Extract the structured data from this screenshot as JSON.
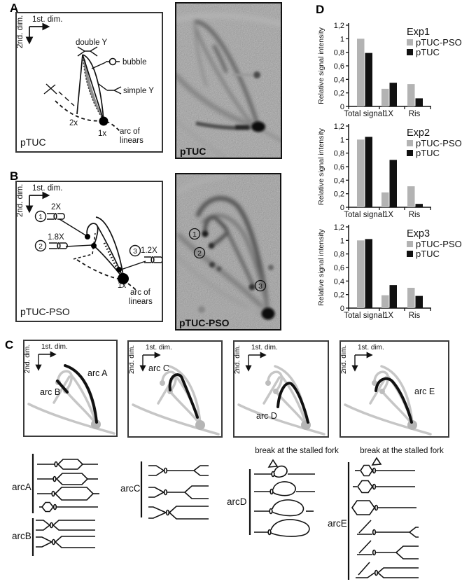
{
  "panelA": {
    "label": "A",
    "diagram": {
      "axis1": "1st. dim.",
      "axis2": "2nd. dim.",
      "double_y": "double Y",
      "bubble": "bubble",
      "simple_y": "simple Y",
      "x2": "2x",
      "x1": "1x",
      "arc_line1": "arc of",
      "arc_line2": "linears",
      "plasmid": "pTUC"
    },
    "gel": {
      "label": "pTUC"
    }
  },
  "panelB": {
    "label": "B",
    "diagram": {
      "axis1": "1st. dim.",
      "axis2": "2nd. dim.",
      "spot1_num": "1",
      "spot1_size": "2X",
      "spot2_num": "2",
      "spot2_size": "1.8X",
      "spot3_num": "3",
      "spot3_size": "1.2X",
      "x1": "1x",
      "arc_line1": "arc of",
      "arc_line2": "linears",
      "plasmid": "pTUC-PSO"
    },
    "gel": {
      "label": "pTUC-PSO",
      "spot1": "1",
      "spot2": "2",
      "spot3": "3"
    }
  },
  "panelC": {
    "label": "C",
    "boxes": [
      {
        "axis1": "1st. dim.",
        "axis2": "2nd. dim.",
        "arc_a": "arc A",
        "arc_b": "arc B"
      },
      {
        "axis1": "1st. dim.",
        "axis2": "2nd. dim.",
        "arc_c": "arc C"
      },
      {
        "axis1": "1st. dim.",
        "axis2": "2nd. dim.",
        "arc_d": "arc D"
      },
      {
        "axis1": "1st. dim.",
        "axis2": "2nd. dim.",
        "arc_e": "arc E"
      }
    ],
    "schematics": {
      "arcA": "arcA",
      "arcB": "arcB",
      "arcC": "arcC",
      "arcD": "arcD",
      "arcE": "arcE",
      "break_d": "break at the stalled fork",
      "break_e": "break at the stalled fork"
    }
  },
  "panelD": {
    "label": "D"
  },
  "chart_data": [
    {
      "type": "bar",
      "title": "Exp1",
      "ylabel": "Relative signal intensity",
      "categories": [
        "Total signal",
        "1X",
        "Ris"
      ],
      "series": [
        {
          "name": "pTUC-PSO",
          "color": "#b3b3b3",
          "values": [
            1.0,
            0.26,
            0.33
          ]
        },
        {
          "name": "pTUC",
          "color": "#111111",
          "values": [
            0.79,
            0.35,
            0.12
          ]
        }
      ],
      "ylim": [
        0,
        1.2
      ],
      "yticks": [
        [
          0,
          "0"
        ],
        [
          0.2,
          "0,2"
        ],
        [
          0.4,
          "0,4"
        ],
        [
          0.6,
          "0,6"
        ],
        [
          0.8,
          "0,8"
        ],
        [
          1,
          "1"
        ],
        [
          1.2,
          "1,2"
        ]
      ],
      "legend_position": "top-right",
      "grid": false
    },
    {
      "type": "bar",
      "title": "Exp2",
      "ylabel": "Relative signal intensity",
      "categories": [
        "Total signal",
        "1X",
        "Ris"
      ],
      "series": [
        {
          "name": "pTUC-PSO",
          "color": "#b3b3b3",
          "values": [
            1.0,
            0.22,
            0.31
          ]
        },
        {
          "name": "pTUC",
          "color": "#111111",
          "values": [
            1.04,
            0.7,
            0.05
          ]
        }
      ],
      "ylim": [
        0,
        1.2
      ],
      "yticks": [
        [
          0,
          "0"
        ],
        [
          0.2,
          "0,2"
        ],
        [
          0.4,
          "0,4"
        ],
        [
          0.6,
          "0,6"
        ],
        [
          0.8,
          "0,8"
        ],
        [
          1,
          "1"
        ],
        [
          1.2,
          "1,2"
        ]
      ],
      "legend_position": "top-right",
      "grid": false
    },
    {
      "type": "bar",
      "title": "Exp3",
      "ylabel": "Relative signal intensity",
      "categories": [
        "Total signal",
        "1X",
        "Ris"
      ],
      "series": [
        {
          "name": "pTUC-PSO",
          "color": "#b3b3b3",
          "values": [
            1.0,
            0.19,
            0.3
          ]
        },
        {
          "name": "pTUC",
          "color": "#111111",
          "values": [
            1.02,
            0.34,
            0.18
          ]
        }
      ],
      "ylim": [
        0,
        1.2
      ],
      "yticks": [
        [
          0,
          "0"
        ],
        [
          0.2,
          "0,2"
        ],
        [
          0.4,
          "0,4"
        ],
        [
          0.6,
          "0,6"
        ],
        [
          0.8,
          "0,8"
        ],
        [
          1,
          "1"
        ],
        [
          1.2,
          "1,2"
        ]
      ],
      "legend_position": "top-right",
      "grid": false
    }
  ],
  "colors": {
    "bar_gray": "#b3b3b3",
    "bar_black": "#111111",
    "background_gray": "#c6c6c6"
  }
}
